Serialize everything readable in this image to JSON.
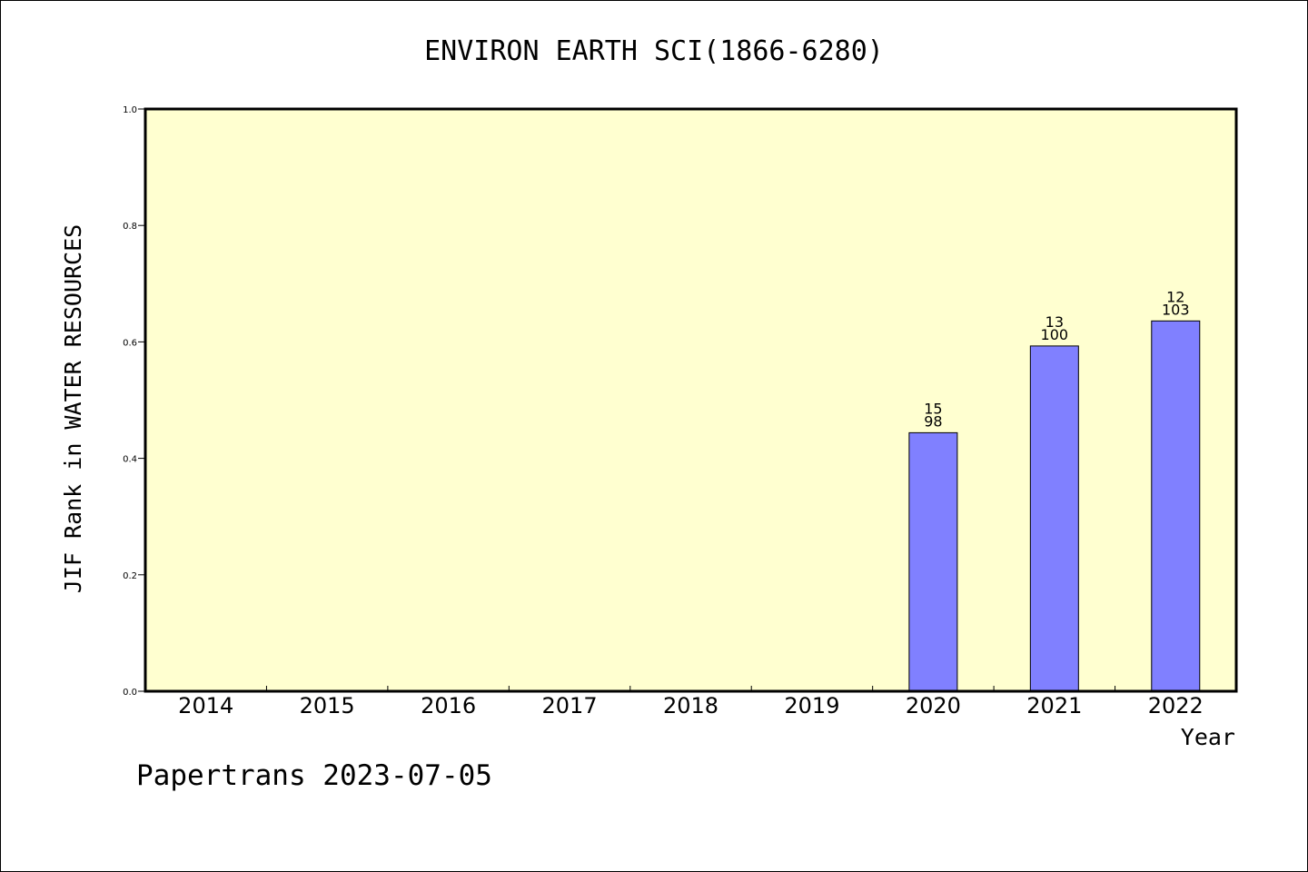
{
  "chart_data": {
    "type": "bar",
    "title": "ENVIRON EARTH SCI(1866-6280)",
    "xlabel": "Year",
    "ylabel": "JIF Rank in WATER RESOURCES",
    "categories": [
      "2014",
      "2015",
      "2016",
      "2017",
      "2018",
      "2019",
      "2020",
      "2021",
      "2022"
    ],
    "values": [
      null,
      null,
      null,
      null,
      null,
      null,
      0.444,
      0.593,
      0.636
    ],
    "data_labels": [
      null,
      null,
      null,
      null,
      null,
      null,
      {
        "rank": "15",
        "total": "98"
      },
      {
        "rank": "13",
        "total": "100"
      },
      {
        "rank": "12",
        "total": "103"
      }
    ],
    "ylim": [
      0,
      1.0
    ],
    "yticks": [
      "0.0",
      "0.2",
      "0.4",
      "0.6",
      "0.8",
      "1.0"
    ],
    "grid": false,
    "colors": {
      "plot_background": "#FFFFD0",
      "bar_fill": "#8080FF",
      "bar_stroke": "#000000",
      "axis": "#000000"
    }
  },
  "footer": "Papertrans 2023-07-05"
}
